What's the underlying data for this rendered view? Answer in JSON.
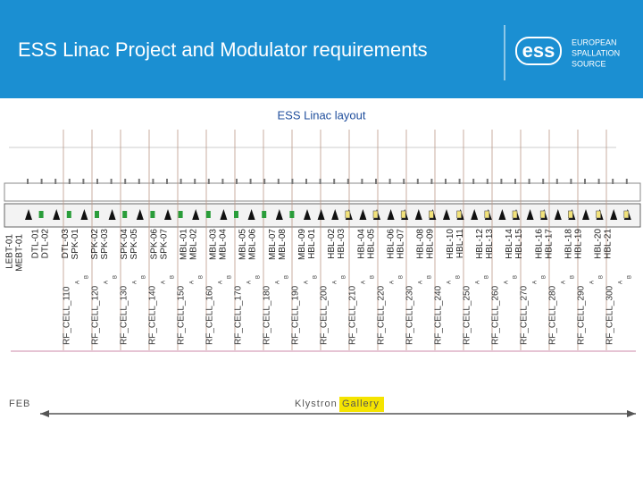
{
  "header": {
    "title": "ESS Linac Project and Modulator requirements",
    "logo": {
      "mark": "ess",
      "text": [
        "EUROPEAN",
        "SPALLATION",
        "SOURCE"
      ]
    }
  },
  "layout": {
    "title": "ESS Linac layout",
    "sections": [
      [
        "LEBT-01",
        "MEBT-01"
      ],
      [
        "DTL-01",
        "DTL-02"
      ],
      [
        "DTL-03",
        "SPK-01"
      ],
      [
        "SPK-02",
        "SPK-03"
      ],
      [
        "SPK-04",
        "SPK-05"
      ],
      [
        "SPK-06",
        "SPK-07"
      ],
      [
        "MBL-01",
        "MBL-02"
      ],
      [
        "MBL-03",
        "MBL-04"
      ],
      [
        "MBL-05",
        "MBL-06"
      ],
      [
        "MBL-07",
        "MBL-08"
      ],
      [
        "MBL-09",
        "HBL-01"
      ],
      [
        "HBL-02",
        "HBL-03"
      ],
      [
        "HBL-04",
        "HBL-05"
      ],
      [
        "HBL-06",
        "HBL-07"
      ],
      [
        "HBL-08",
        "HBL-09"
      ],
      [
        "HBL-10",
        "HBL-11"
      ],
      [
        "HBL-12",
        "HBL-13"
      ],
      [
        "HBL-14",
        "HBL-15"
      ],
      [
        "HBL-16",
        "HBL-17"
      ],
      [
        "HBL-18",
        "HBL-19"
      ],
      [
        "HBL-20",
        "HBL-21"
      ]
    ],
    "cells": [
      "RF_CELL_110",
      "RF_CELL_120",
      "RF_CELL_130",
      "RF_CELL_140",
      "RF_CELL_150",
      "RF_CELL_160",
      "RF_CELL_170",
      "RF_CELL_180",
      "RF_CELL_190",
      "RF_CELL_200",
      "RF_CELL_210",
      "RF_CELL_220",
      "RF_CELL_230",
      "RF_CELL_240",
      "RF_CELL_250",
      "RF_CELL_260",
      "RF_CELL_270",
      "RF_CELL_280",
      "RF_CELL_290",
      "RF_CELL_300"
    ],
    "sides": [
      "A",
      "B"
    ],
    "feb": "FEB",
    "gallery": [
      "Klystron",
      "Gallery"
    ]
  }
}
